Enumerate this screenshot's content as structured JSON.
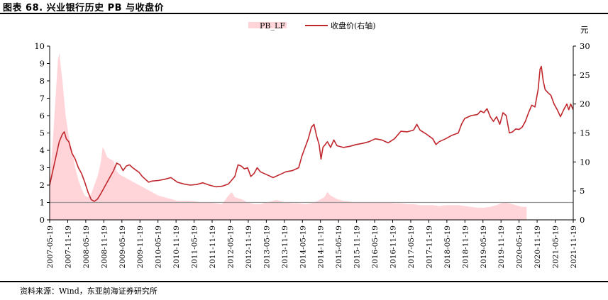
{
  "figure": {
    "title": "图表 68. 兴业银行历史 PB 与收盘价",
    "source": "资料来源：Wind，东亚前海证券研究所"
  },
  "chart_data": {
    "type": "area+line",
    "legend": [
      "PB_LF",
      "收盘价(右轴)"
    ],
    "right_axis_unit": "元",
    "x_tick_labels": [
      "2007-05-19",
      "2007-11-19",
      "2008-05-19",
      "2008-11-19",
      "2009-05-19",
      "2009-11-19",
      "2010-05-19",
      "2010-11-19",
      "2011-05-19",
      "2011-11-19",
      "2012-05-19",
      "2012-11-19",
      "2013-05-19",
      "2013-11-19",
      "2014-05-19",
      "2014-11-19",
      "2015-05-19",
      "2015-11-19",
      "2016-05-19",
      "2016-11-19",
      "2017-05-19",
      "2017-11-19",
      "2018-05-19",
      "2018-11-19",
      "2019-05-19",
      "2019-11-19",
      "2020-05-19",
      "2020-11-19",
      "2021-05-19",
      "2021-11-19"
    ],
    "left_ylim": [
      0,
      10
    ],
    "left_yticks": [
      "0",
      "1",
      "2",
      "3",
      "4",
      "5",
      "6",
      "7",
      "8",
      "9",
      "10"
    ],
    "right_ylim": [
      0,
      30
    ],
    "right_yticks": [
      "0",
      "5",
      "10",
      "15",
      "20",
      "25",
      "30"
    ],
    "reference_line_pb": 1,
    "series": [
      {
        "name": "PB_LF",
        "axis": "left",
        "color": "#ffd5da",
        "points": [
          [
            0,
            2.2
          ],
          [
            0.5,
            4.5
          ],
          [
            1,
            7.5
          ],
          [
            1.3,
            9.2
          ],
          [
            1.5,
            9.6
          ],
          [
            2,
            8.0
          ],
          [
            2.5,
            6.0
          ],
          [
            3,
            4.8
          ],
          [
            3.5,
            4.0
          ],
          [
            4,
            3.0
          ],
          [
            4.5,
            2.3
          ],
          [
            5,
            1.8
          ],
          [
            5.5,
            1.4
          ],
          [
            6,
            1.3
          ],
          [
            6.5,
            1.5
          ],
          [
            7,
            2.0
          ],
          [
            7.5,
            2.5
          ],
          [
            8,
            3.3
          ],
          [
            8.3,
            4.2
          ],
          [
            8.6,
            4.0
          ],
          [
            9,
            3.6
          ],
          [
            9.5,
            3.5
          ],
          [
            10,
            3.4
          ],
          [
            10.5,
            2.8
          ],
          [
            11,
            2.6
          ],
          [
            12,
            2.4
          ],
          [
            13,
            2.2
          ],
          [
            14,
            2.0
          ],
          [
            15,
            1.8
          ],
          [
            16,
            1.6
          ],
          [
            17,
            1.4
          ],
          [
            18,
            1.3
          ],
          [
            19,
            1.2
          ],
          [
            20,
            1.1
          ],
          [
            21,
            1.1
          ],
          [
            22,
            1.1
          ],
          [
            23,
            1.05
          ],
          [
            24,
            1.0
          ],
          [
            25,
            1.0
          ],
          [
            26,
            0.95
          ],
          [
            27,
            0.9
          ],
          [
            28,
            1.4
          ],
          [
            28.5,
            1.6
          ],
          [
            29,
            1.3
          ],
          [
            30,
            1.2
          ],
          [
            31,
            1.0
          ],
          [
            32,
            0.9
          ],
          [
            33,
            0.9
          ],
          [
            34,
            1.0
          ],
          [
            35,
            1.1
          ],
          [
            35.5,
            1.15
          ],
          [
            36,
            1.1
          ],
          [
            37,
            1.0
          ],
          [
            38,
            0.95
          ],
          [
            39,
            0.95
          ],
          [
            40,
            0.9
          ],
          [
            41,
            0.95
          ],
          [
            42,
            1.1
          ],
          [
            43,
            1.3
          ],
          [
            43.5,
            1.6
          ],
          [
            44,
            1.4
          ],
          [
            45,
            1.2
          ],
          [
            46,
            1.1
          ],
          [
            47,
            1.05
          ],
          [
            48,
            1.0
          ],
          [
            49,
            1.0
          ],
          [
            50,
            1.0
          ],
          [
            51,
            1.0
          ],
          [
            52,
            1.0
          ],
          [
            53,
            1.0
          ],
          [
            54,
            0.95
          ],
          [
            55,
            0.95
          ],
          [
            56,
            0.9
          ],
          [
            57,
            0.9
          ],
          [
            58,
            0.85
          ],
          [
            59,
            0.85
          ],
          [
            60,
            0.85
          ],
          [
            61,
            0.8
          ],
          [
            62,
            0.85
          ],
          [
            63,
            0.85
          ],
          [
            64,
            0.85
          ],
          [
            65,
            0.8
          ],
          [
            66,
            0.75
          ],
          [
            67,
            0.7
          ],
          [
            68,
            0.7
          ],
          [
            69,
            0.75
          ],
          [
            70,
            0.85
          ],
          [
            71,
            1.0
          ],
          [
            72,
            0.95
          ],
          [
            73,
            0.85
          ],
          [
            74,
            0.75
          ],
          [
            74.7,
            0.75
          ]
        ]
      },
      {
        "name": "收盘价(右轴)",
        "axis": "right",
        "color": "#c0272d",
        "points": [
          [
            0,
            6.0
          ],
          [
            0.5,
            8.5
          ],
          [
            1,
            11.0
          ],
          [
            1.5,
            13.5
          ],
          [
            2,
            14.8
          ],
          [
            2.3,
            15.2
          ],
          [
            2.6,
            14.0
          ],
          [
            3,
            13.5
          ],
          [
            3.5,
            11.5
          ],
          [
            4,
            10.5
          ],
          [
            4.5,
            9.0
          ],
          [
            5,
            8.0
          ],
          [
            5.5,
            6.5
          ],
          [
            6,
            4.8
          ],
          [
            6.5,
            3.5
          ],
          [
            7,
            3.2
          ],
          [
            7.5,
            3.6
          ],
          [
            8,
            4.5
          ],
          [
            8.5,
            5.5
          ],
          [
            9,
            6.5
          ],
          [
            9.5,
            7.5
          ],
          [
            10,
            8.5
          ],
          [
            10.5,
            9.8
          ],
          [
            11,
            9.5
          ],
          [
            11.5,
            8.5
          ],
          [
            12,
            9.3
          ],
          [
            12.5,
            9.5
          ],
          [
            13,
            9.0
          ],
          [
            13.5,
            8.6
          ],
          [
            14,
            8.2
          ],
          [
            14.5,
            7.5
          ],
          [
            15,
            7.0
          ],
          [
            15.5,
            6.5
          ],
          [
            16,
            6.7
          ],
          [
            17,
            6.8
          ],
          [
            18,
            7.0
          ],
          [
            19,
            7.3
          ],
          [
            20,
            6.5
          ],
          [
            21,
            6.2
          ],
          [
            22,
            6.0
          ],
          [
            23,
            6.1
          ],
          [
            24,
            6.4
          ],
          [
            25,
            6.0
          ],
          [
            26,
            5.7
          ],
          [
            27,
            5.8
          ],
          [
            28,
            6.2
          ],
          [
            29,
            7.5
          ],
          [
            29.5,
            9.5
          ],
          [
            30,
            9.3
          ],
          [
            30.5,
            8.8
          ],
          [
            31,
            9.0
          ],
          [
            31.5,
            7.5
          ],
          [
            32,
            8.0
          ],
          [
            32.5,
            9.0
          ],
          [
            33,
            8.3
          ],
          [
            34,
            7.8
          ],
          [
            35,
            7.3
          ],
          [
            36,
            7.8
          ],
          [
            37,
            8.3
          ],
          [
            38,
            8.5
          ],
          [
            39,
            9.0
          ],
          [
            39.5,
            11.0
          ],
          [
            40,
            12.5
          ],
          [
            40.5,
            14.0
          ],
          [
            41,
            16.0
          ],
          [
            41.4,
            16.5
          ],
          [
            41.8,
            14.5
          ],
          [
            42.2,
            13.0
          ],
          [
            42.5,
            10.5
          ],
          [
            42.8,
            12.5
          ],
          [
            43.5,
            13.5
          ],
          [
            44,
            12.5
          ],
          [
            44.5,
            13.8
          ],
          [
            45,
            12.8
          ],
          [
            46,
            12.5
          ],
          [
            47,
            12.7
          ],
          [
            48,
            13.0
          ],
          [
            49,
            13.2
          ],
          [
            50,
            13.5
          ],
          [
            51,
            14.0
          ],
          [
            52,
            13.8
          ],
          [
            53,
            13.3
          ],
          [
            54,
            14.0
          ],
          [
            55,
            15.3
          ],
          [
            56,
            15.2
          ],
          [
            57,
            15.5
          ],
          [
            57.5,
            16.5
          ],
          [
            58,
            15.5
          ],
          [
            59,
            14.8
          ],
          [
            60,
            14.0
          ],
          [
            60.5,
            13.0
          ],
          [
            61,
            13.5
          ],
          [
            62,
            14.0
          ],
          [
            63,
            14.6
          ],
          [
            64,
            15.0
          ],
          [
            64.5,
            16.5
          ],
          [
            65,
            17.5
          ],
          [
            66,
            18.0
          ],
          [
            67,
            18.2
          ],
          [
            67.5,
            18.8
          ],
          [
            68,
            18.5
          ],
          [
            68.5,
            19.2
          ],
          [
            69,
            17.8
          ],
          [
            69.5,
            17.0
          ],
          [
            70,
            17.8
          ],
          [
            70.5,
            16.5
          ],
          [
            71,
            18.5
          ],
          [
            71.5,
            18.0
          ],
          [
            72,
            15.0
          ],
          [
            72.5,
            15.2
          ],
          [
            73,
            15.7
          ],
          [
            73.5,
            15.6
          ],
          [
            74,
            16.0
          ],
          [
            74.5,
            17.0
          ],
          [
            75,
            18.5
          ],
          [
            75.5,
            19.8
          ],
          [
            76,
            19.5
          ],
          [
            76.5,
            22.5
          ],
          [
            76.8,
            26.0
          ],
          [
            77,
            26.5
          ],
          [
            77.3,
            24.0
          ],
          [
            77.6,
            22.5
          ],
          [
            78,
            22.0
          ],
          [
            78.5,
            21.5
          ],
          [
            79,
            20.0
          ],
          [
            79.5,
            19.0
          ],
          [
            80,
            17.8
          ],
          [
            80.5,
            19.0
          ],
          [
            81,
            20.0
          ],
          [
            81.3,
            19.0
          ],
          [
            81.6,
            20.0
          ],
          [
            82,
            19.0
          ]
        ]
      }
    ]
  }
}
